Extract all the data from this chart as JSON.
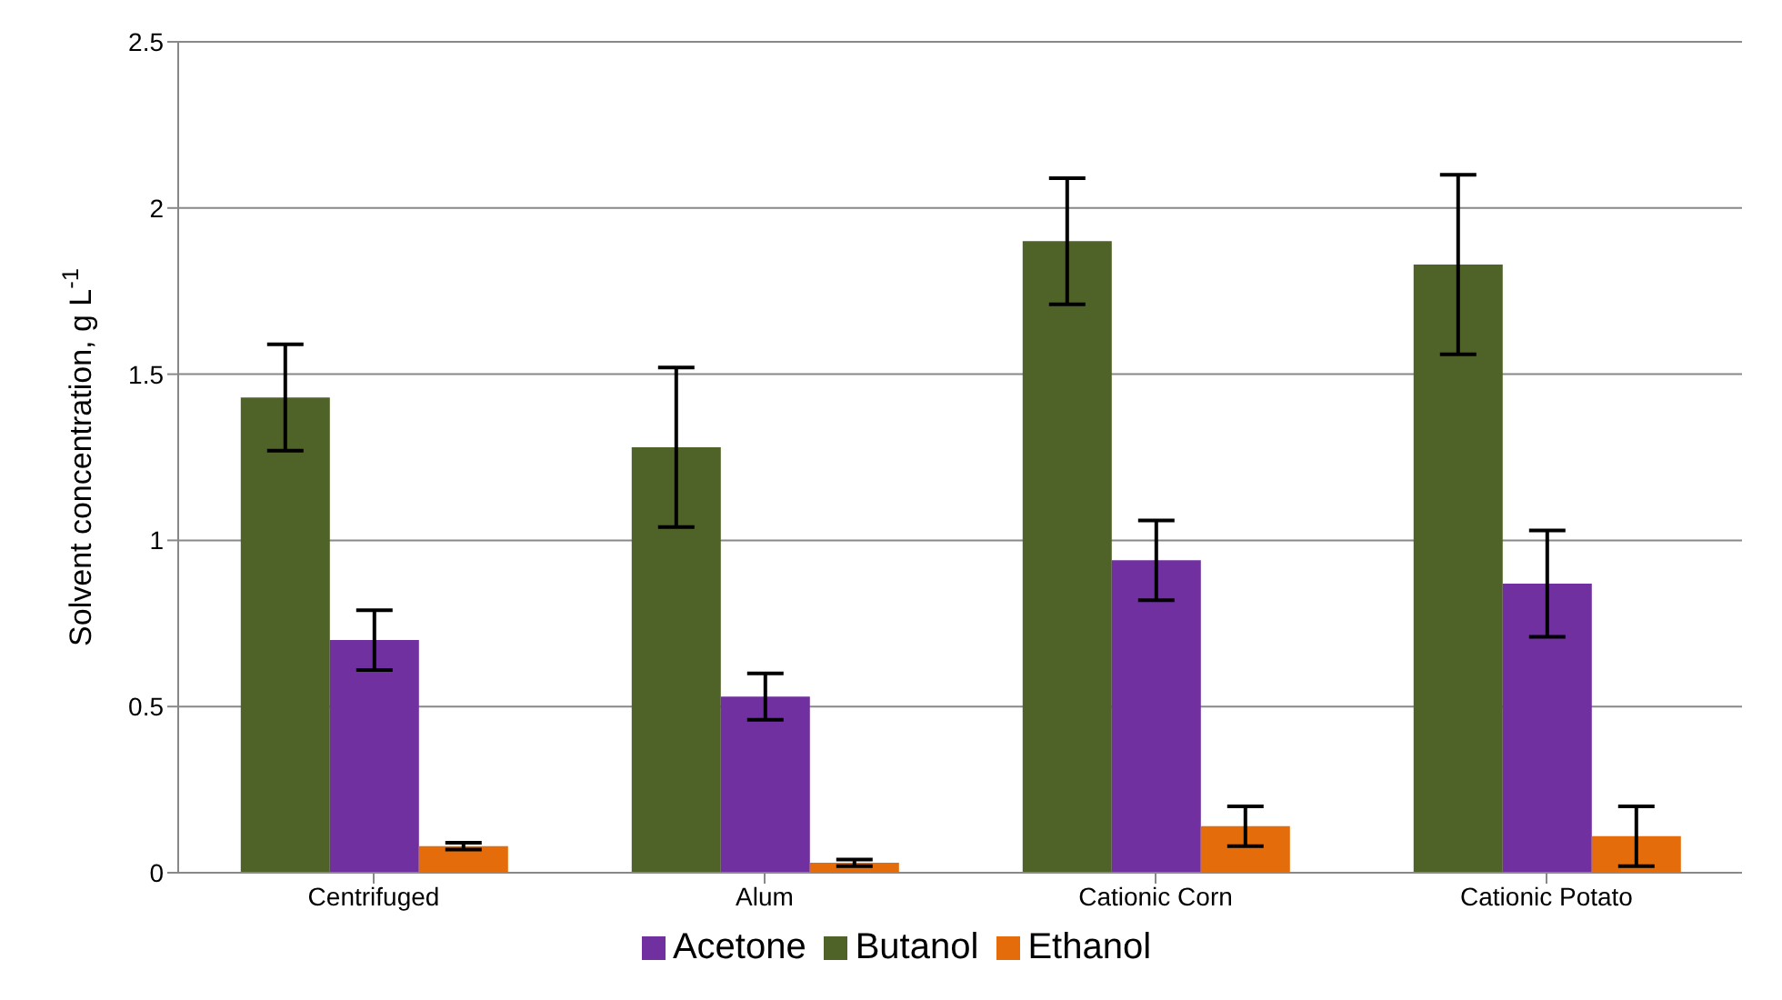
{
  "chart_data": {
    "type": "bar",
    "ylabel": "Solvent concentration, g L$^{-1}$",
    "categories": [
      "Centrifuged",
      "Alum",
      "Cationic Corn",
      "Cationic Potato"
    ],
    "series": [
      {
        "name": "Butanol",
        "color": "#4f6228",
        "values": [
          1.43,
          1.28,
          1.9,
          1.83
        ],
        "errors": [
          0.16,
          0.24,
          0.19,
          0.27
        ]
      },
      {
        "name": "Acetone",
        "color": "#7030a0",
        "values": [
          0.7,
          0.53,
          0.94,
          0.87
        ],
        "errors": [
          0.09,
          0.07,
          0.12,
          0.16
        ]
      },
      {
        "name": "Ethanol",
        "color": "#e46c0a",
        "values": [
          0.08,
          0.03,
          0.14,
          0.11
        ],
        "errors": [
          0.01,
          0.01,
          0.06,
          0.09
        ]
      }
    ],
    "ylim": [
      0,
      2.5
    ],
    "yticks": [
      0,
      0.5,
      1,
      1.5,
      2,
      2.5
    ],
    "grid": "y",
    "legend": "bottom"
  }
}
